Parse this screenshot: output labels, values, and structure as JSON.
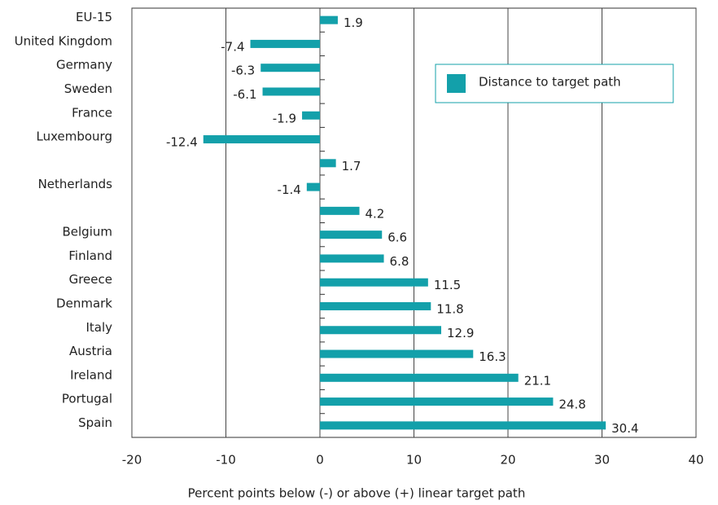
{
  "chart_data": {
    "type": "bar",
    "orientation": "horizontal",
    "categories": [
      "EU-15",
      "United Kingdom",
      "Germany",
      "Sweden",
      "France",
      "Luxembourg",
      null,
      "Netherlands",
      null,
      "Belgium",
      "Finland",
      "Greece",
      "Denmark",
      "Italy",
      "Austria",
      "Ireland",
      "Portugal",
      "Spain"
    ],
    "series": [
      {
        "name": "Distance to target path",
        "color": "#13a0aa",
        "values": [
          1.9,
          -7.4,
          -6.3,
          -6.1,
          -1.9,
          -12.4,
          1.7,
          -1.4,
          4.2,
          6.6,
          6.8,
          11.5,
          11.8,
          12.9,
          16.3,
          21.1,
          24.8,
          30.4
        ]
      }
    ],
    "xlim": [
      -20,
      40
    ],
    "xticks": [
      -20,
      -10,
      0,
      10,
      20,
      30,
      40
    ],
    "xlabel": "Percent points below (-) or above (+) linear target path",
    "grid": true,
    "legend": "upper right"
  }
}
